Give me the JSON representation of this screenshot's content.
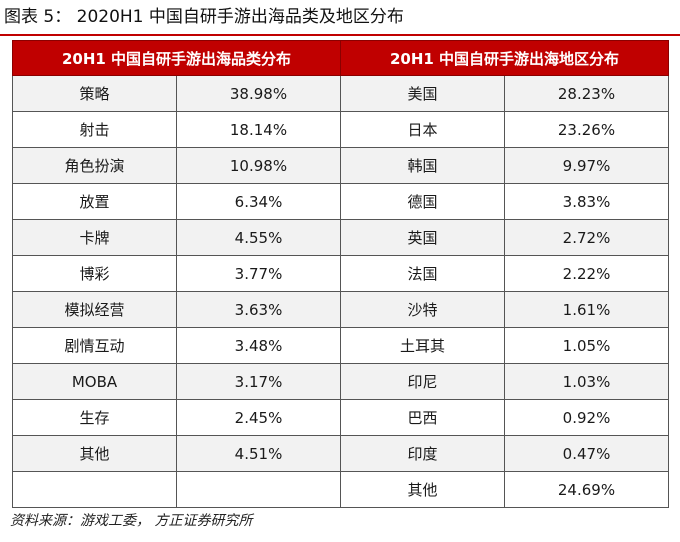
{
  "figure": {
    "title": "图表 5： 2020H1 中国自研手游出海品类及地区分布",
    "source": "资料来源：游戏工委， 方正证券研究所"
  },
  "table": {
    "headers": [
      "20H1 中国自研手游出海品类分布",
      "20H1 中国自研手游出海地区分布"
    ],
    "rows": [
      {
        "category": "策略",
        "category_share": "38.98%",
        "region": "美国",
        "region_share": "28.23%"
      },
      {
        "category": "射击",
        "category_share": "18.14%",
        "region": "日本",
        "region_share": "23.26%"
      },
      {
        "category": "角色扮演",
        "category_share": "10.98%",
        "region": "韩国",
        "region_share": "9.97%"
      },
      {
        "category": "放置",
        "category_share": "6.34%",
        "region": "德国",
        "region_share": "3.83%"
      },
      {
        "category": "卡牌",
        "category_share": "4.55%",
        "region": "英国",
        "region_share": "2.72%"
      },
      {
        "category": "博彩",
        "category_share": "3.77%",
        "region": "法国",
        "region_share": "2.22%"
      },
      {
        "category": "模拟经营",
        "category_share": "3.63%",
        "region": "沙特",
        "region_share": "1.61%"
      },
      {
        "category": "剧情互动",
        "category_share": "3.48%",
        "region": "土耳其",
        "region_share": "1.05%"
      },
      {
        "category": "MOBA",
        "category_share": "3.17%",
        "region": "印尼",
        "region_share": "1.03%"
      },
      {
        "category": "生存",
        "category_share": "2.45%",
        "region": "巴西",
        "region_share": "0.92%"
      },
      {
        "category": "其他",
        "category_share": "4.51%",
        "region": "印度",
        "region_share": "0.47%"
      },
      {
        "category": "",
        "category_share": "",
        "region": "其他",
        "region_share": "24.69%"
      }
    ]
  },
  "colors": {
    "header_bg": "#c00000",
    "header_text": "#ffffff",
    "row_shade": "#f2f2f2"
  }
}
